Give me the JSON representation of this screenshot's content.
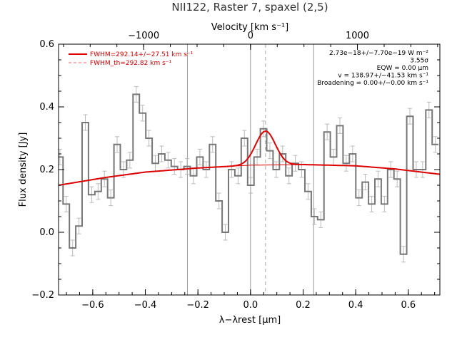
{
  "chart_data": {
    "type": "line",
    "title": "NII122, Raster 7, spaxel (2,5)",
    "xlabel": "λ−λrest [µm]",
    "ylabel": "Flux density [Jy]",
    "top_xlabel": "Velocity [km s⁻¹]",
    "xlim": [
      -0.73,
      0.72
    ],
    "ylim": [
      -0.2,
      0.6
    ],
    "x_ticks": [
      -0.6,
      -0.4,
      -0.2,
      0.0,
      0.2,
      0.4,
      0.6
    ],
    "x_tick_labels": [
      "−0.6",
      "−0.4",
      "−0.2",
      "0.0",
      "0.2",
      "0.4",
      "0.6"
    ],
    "y_ticks": [
      -0.2,
      0.0,
      0.2,
      0.4,
      0.6
    ],
    "y_tick_labels": [
      "−0.2",
      "0.0",
      "0.2",
      "0.4",
      "0.6"
    ],
    "top_ticks_um": [
      -0.4065,
      0.0,
      0.4065
    ],
    "top_tick_labels": [
      "−1000",
      "0",
      "1000"
    ],
    "vertical_lines_um": [
      -0.24,
      0.0,
      0.24
    ],
    "line_center_um": 0.057,
    "bin_width": 0.0242,
    "spectrum": {
      "x": [
        -0.725,
        -0.7008,
        -0.6766,
        -0.6524,
        -0.6282,
        -0.604,
        -0.5798,
        -0.5556,
        -0.5314,
        -0.5072,
        -0.483,
        -0.4588,
        -0.4346,
        -0.4104,
        -0.3862,
        -0.362,
        -0.3378,
        -0.3136,
        -0.2894,
        -0.2652,
        -0.241,
        -0.2168,
        -0.1926,
        -0.1684,
        -0.1442,
        -0.12,
        -0.0958,
        -0.0716,
        -0.0474,
        -0.0232,
        0.001,
        0.0252,
        0.0494,
        0.0736,
        0.0978,
        0.122,
        0.1462,
        0.1704,
        0.1946,
        0.2188,
        0.243,
        0.2672,
        0.2914,
        0.3156,
        0.3398,
        0.364,
        0.3882,
        0.4124,
        0.4366,
        0.4608,
        0.485,
        0.5092,
        0.5334,
        0.5576,
        0.5818,
        0.606,
        0.6302,
        0.6544,
        0.6786,
        0.7028
      ],
      "y": [
        0.24,
        0.09,
        -0.05,
        0.02,
        0.35,
        0.12,
        0.13,
        0.17,
        0.11,
        0.28,
        0.2,
        0.23,
        0.44,
        0.38,
        0.3,
        0.22,
        0.25,
        0.23,
        0.21,
        0.2,
        0.21,
        0.18,
        0.24,
        0.2,
        0.28,
        0.1,
        0.0,
        0.2,
        0.18,
        0.3,
        0.15,
        0.24,
        0.33,
        0.26,
        0.2,
        0.25,
        0.18,
        0.22,
        0.2,
        0.13,
        0.05,
        0.04,
        0.32,
        0.24,
        0.34,
        0.22,
        0.25,
        0.11,
        0.16,
        0.09,
        0.17,
        0.09,
        0.2,
        0.17,
        -0.07,
        0.37,
        0.2,
        0.2,
        0.39,
        0.28
      ],
      "err": [
        0.025,
        0.025,
        0.025,
        0.025,
        0.025,
        0.025,
        0.025,
        0.025,
        0.025,
        0.025,
        0.025,
        0.025,
        0.025,
        0.025,
        0.025,
        0.025,
        0.025,
        0.025,
        0.025,
        0.025,
        0.025,
        0.025,
        0.025,
        0.025,
        0.025,
        0.025,
        0.025,
        0.025,
        0.025,
        0.025,
        0.025,
        0.025,
        0.025,
        0.025,
        0.025,
        0.025,
        0.025,
        0.025,
        0.025,
        0.025,
        0.025,
        0.025,
        0.025,
        0.025,
        0.025,
        0.025,
        0.025,
        0.025,
        0.025,
        0.025,
        0.025,
        0.025,
        0.025,
        0.025,
        0.025,
        0.025,
        0.025,
        0.025,
        0.025,
        0.025
      ]
    },
    "model": {
      "name": "FWHM=292.14+/−27.51 km s⁻¹",
      "baseline_x": [
        -0.73,
        -0.55,
        -0.4,
        -0.2,
        0.0,
        0.2,
        0.4,
        0.55,
        0.72
      ],
      "baseline_y": [
        0.15,
        0.175,
        0.192,
        0.205,
        0.214,
        0.216,
        0.212,
        0.202,
        0.185
      ],
      "gauss_center": 0.057,
      "gauss_amp": 0.108,
      "gauss_sigma": 0.0375
    },
    "model_th": {
      "name": "FWHM_th=292.82 km s⁻¹"
    },
    "annotations": [
      "2.73e−18+/−7.70e−19 W m⁻²",
      "3.55σ",
      "EQW = 0.00 µm",
      "v = 138.97+/−41.53 km s⁻¹",
      "Broadening = 0.00+/−0.00 km s⁻¹"
    ],
    "colors": {
      "spectrum": "#777777",
      "errorbar": "#bbbbbb",
      "model": "#dd0000",
      "model_th": "#ff6060",
      "vlines": "#999999",
      "center_line": "#aaaaaa"
    },
    "grid": false,
    "legend_position": "top-left"
  }
}
